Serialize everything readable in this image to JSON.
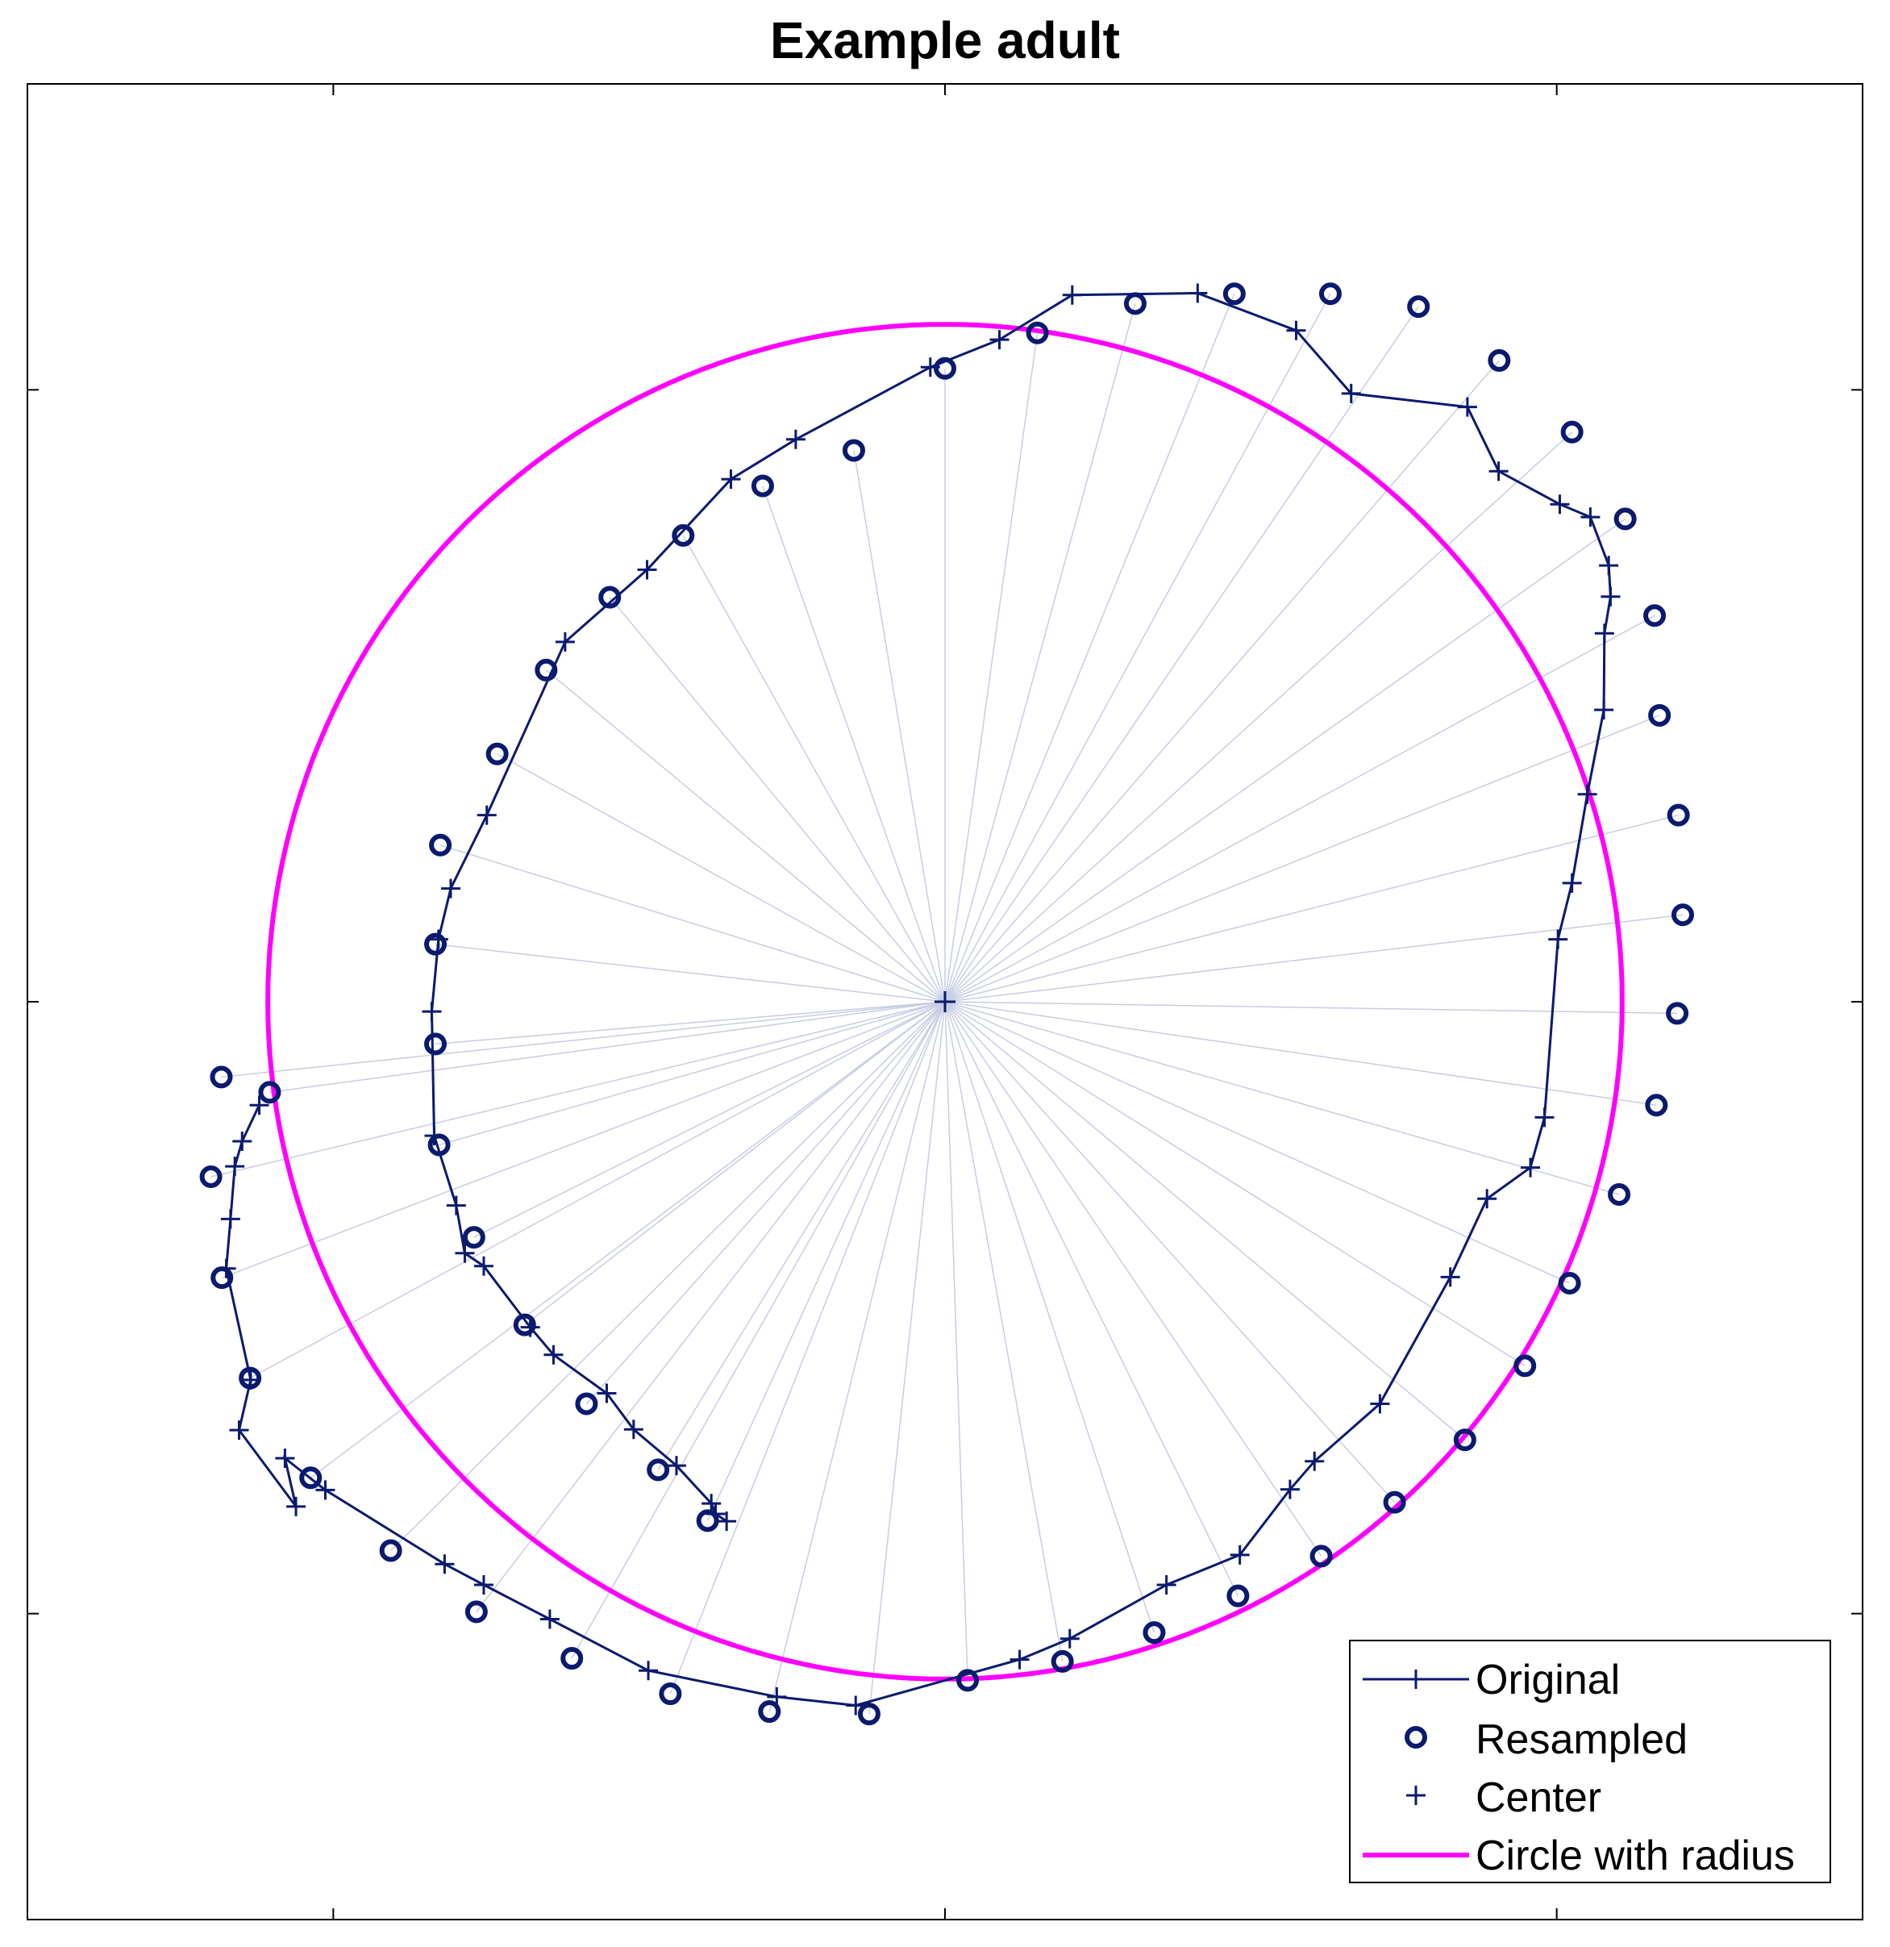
{
  "chart_data": {
    "type": "scatter",
    "title": "Example adult",
    "xlabel": "",
    "ylabel": "",
    "xlim": [
      -1.5,
      1.5
    ],
    "ylim": [
      -1.5,
      1.5
    ],
    "xticks": [
      -1,
      0,
      1
    ],
    "yticks": [
      -1,
      0,
      1
    ],
    "tick_labels_visible": false,
    "grid": false,
    "legend_position": "bottom-right",
    "center": [
      0,
      0
    ],
    "circle_radius": 1.107,
    "colors": {
      "original": "#0a1a6e",
      "resampled": "#0a1a6e",
      "center": "#0a1a6e",
      "circle": "#ff00ff",
      "rays": "#c7cde3"
    },
    "series": [
      {
        "name": "Original",
        "marker": "plus",
        "line": true,
        "x": [
          -0.357,
          -0.375,
          -0.382,
          -0.439,
          -0.509,
          -0.553,
          -0.64,
          -0.678,
          -0.754,
          -0.785,
          -0.799,
          -0.835,
          -0.839,
          -0.828,
          -0.808,
          -0.749,
          -0.621,
          -0.487,
          -0.35,
          -0.244,
          -0.024,
          0.089,
          0.208,
          0.413,
          0.574,
          0.664,
          0.854,
          0.905,
          1.005,
          1.055,
          1.085,
          1.088,
          1.078,
          1.077,
          1.05,
          1.025,
          1.002,
          0.98,
          0.957,
          0.886,
          0.826,
          0.711,
          0.604,
          0.564,
          0.482,
          0.362,
          0.204,
          0.122,
          -0.146,
          -0.275,
          -0.485,
          -0.646,
          -0.754,
          -0.818,
          -1.013,
          -1.079,
          -1.061,
          -1.154,
          -1.135,
          -1.175,
          -1.168,
          -1.161,
          -1.149,
          -1.121
        ],
        "y": [
          -0.849,
          -0.837,
          -0.82,
          -0.758,
          -0.699,
          -0.64,
          -0.577,
          -0.532,
          -0.432,
          -0.411,
          -0.333,
          -0.219,
          -0.016,
          0.102,
          0.185,
          0.305,
          0.588,
          0.706,
          0.854,
          0.919,
          1.037,
          1.082,
          1.155,
          1.158,
          1.097,
          0.994,
          0.972,
          0.867,
          0.813,
          0.792,
          0.713,
          0.662,
          0.602,
          0.477,
          0.339,
          0.194,
          0.102,
          -0.189,
          -0.271,
          -0.322,
          -0.45,
          -0.657,
          -0.751,
          -0.797,
          -0.904,
          -0.953,
          -1.041,
          -1.075,
          -1.15,
          -1.136,
          -1.093,
          -1.009,
          -0.953,
          -0.919,
          -0.798,
          -0.746,
          -0.825,
          -0.7,
          -0.618,
          -0.436,
          -0.355,
          -0.269,
          -0.228,
          -0.169
        ]
      },
      {
        "name": "Resampled",
        "marker": "circle",
        "line": false,
        "x": [
          -0.388,
          -0.469,
          -0.586,
          -0.687,
          -0.77,
          -0.827,
          -0.833,
          -0.833,
          -0.825,
          -0.732,
          -0.652,
          -0.548,
          -0.428,
          -0.298,
          -0.149,
          0.0,
          0.151,
          0.311,
          0.473,
          0.63,
          0.774,
          0.906,
          1.025,
          1.112,
          1.16,
          1.168,
          1.199,
          1.206,
          1.197,
          1.163,
          1.102,
          1.021,
          0.948,
          0.85,
          0.735,
          0.615,
          0.479,
          0.342,
          0.192,
          0.037,
          -0.124,
          -0.287,
          -0.449,
          -0.61,
          -0.766,
          -0.906,
          -1.037,
          -1.136,
          -1.182,
          -1.2,
          -1.183,
          -1.104
        ],
        "y": [
          -0.848,
          -0.765,
          -0.657,
          -0.528,
          -0.385,
          -0.234,
          -0.069,
          0.094,
          0.256,
          0.405,
          0.542,
          0.661,
          0.762,
          0.843,
          0.901,
          1.035,
          1.093,
          1.141,
          1.157,
          1.157,
          1.136,
          1.048,
          0.931,
          0.789,
          0.631,
          0.468,
          0.305,
          0.142,
          -0.019,
          -0.169,
          -0.315,
          -0.46,
          -0.595,
          -0.716,
          -0.818,
          -0.906,
          -0.971,
          -1.031,
          -1.078,
          -1.109,
          -1.164,
          -1.16,
          -1.131,
          -1.073,
          -0.997,
          -0.897,
          -0.778,
          -0.615,
          -0.451,
          -0.286,
          -0.123,
          -0.148
        ]
      },
      {
        "name": "Center",
        "marker": "plus",
        "line": false,
        "x": [
          0
        ],
        "y": [
          0
        ]
      },
      {
        "name": "Circle with radius",
        "marker": "none",
        "line": true,
        "shape": "circle",
        "x": [
          0
        ],
        "y": [
          0
        ],
        "radius": 1.107
      }
    ]
  }
}
